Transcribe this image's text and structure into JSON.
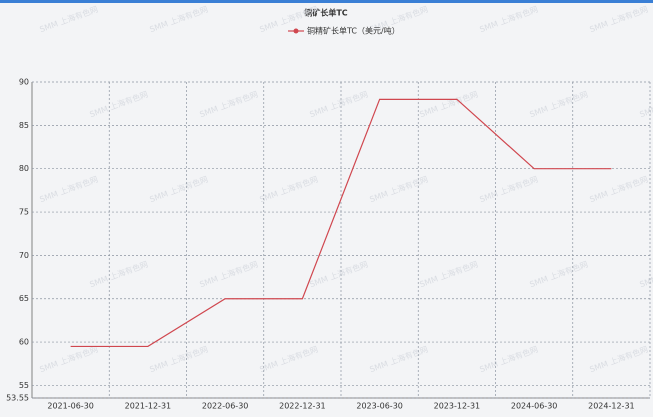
{
  "chart_data": {
    "type": "line",
    "title": "铜矿长单TC",
    "watermark": "SMM 上海有色网",
    "categories": [
      "2021-06-30",
      "2021-12-31",
      "2022-06-30",
      "2022-12-31",
      "2023-06-30",
      "2023-12-31",
      "2024-06-30",
      "2024-12-31"
    ],
    "series": [
      {
        "name": "铜精矿长单TC（美元/吨）",
        "color": "#d0474f",
        "values": [
          59.5,
          59.5,
          65,
          65,
          88,
          88,
          80,
          80
        ]
      }
    ],
    "ylim": [
      53.55,
      90
    ],
    "yticks": [
      53.55,
      55,
      60,
      65,
      70,
      75,
      80,
      85,
      90
    ],
    "grid": true,
    "legend": "top"
  }
}
